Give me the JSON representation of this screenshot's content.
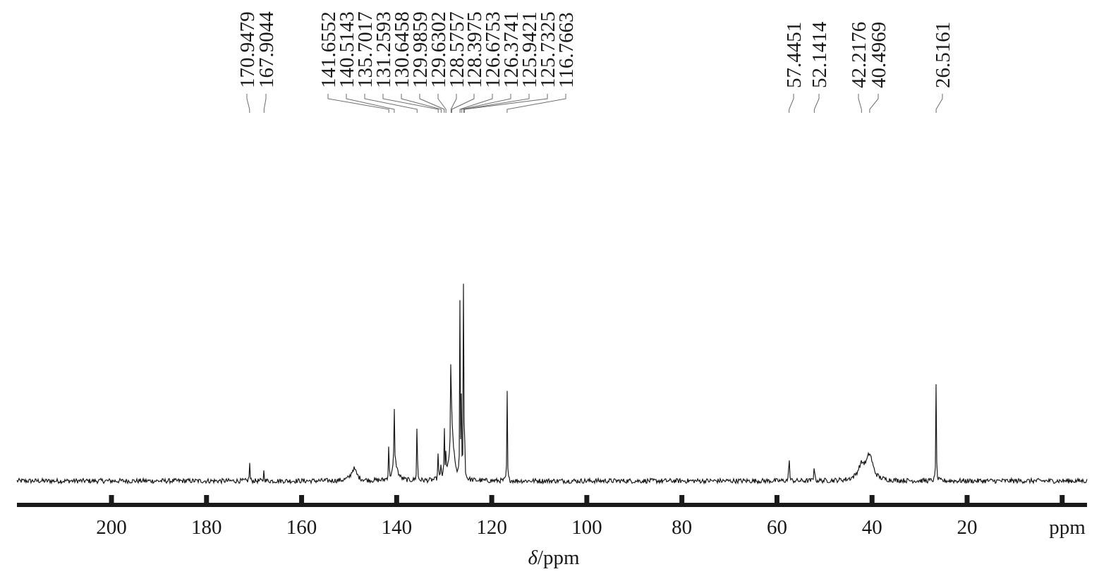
{
  "chart_data": {
    "type": "line",
    "title": "",
    "xlabel_symbol": "δ",
    "xlabel_rest": "/ppm",
    "axis_unit": "ppm",
    "xlim": [
      220,
      4
    ],
    "x_ticks": [
      200,
      180,
      160,
      140,
      120,
      100,
      80,
      60,
      40,
      20,
      0
    ],
    "tick_labels": [
      "200",
      "180",
      "160",
      "140",
      "120",
      "100",
      "80",
      "60",
      "40",
      "20"
    ],
    "y_scale": "relative intensity (0 = baseline, 1 = tallest peak)",
    "peak_labels": [
      {
        "ppm": 170.9479,
        "text": "170.9479"
      },
      {
        "ppm": 167.9044,
        "text": "167.9044"
      },
      {
        "ppm": 141.6552,
        "text": "141.6552"
      },
      {
        "ppm": 140.5143,
        "text": "140.5143"
      },
      {
        "ppm": 135.7017,
        "text": "135.7017"
      },
      {
        "ppm": 131.2593,
        "text": "131.2593"
      },
      {
        "ppm": 130.6458,
        "text": "130.6458"
      },
      {
        "ppm": 129.9859,
        "text": "129.9859"
      },
      {
        "ppm": 129.6302,
        "text": "129.6302"
      },
      {
        "ppm": 128.5757,
        "text": "128.5757"
      },
      {
        "ppm": 128.3975,
        "text": "128.3975"
      },
      {
        "ppm": 126.6753,
        "text": "126.6753"
      },
      {
        "ppm": 126.3741,
        "text": "126.3741"
      },
      {
        "ppm": 125.9421,
        "text": "125.9421"
      },
      {
        "ppm": 125.7325,
        "text": "125.7325"
      },
      {
        "ppm": 116.7663,
        "text": "116.7663"
      },
      {
        "ppm": 57.4451,
        "text": "57.4451"
      },
      {
        "ppm": 52.1414,
        "text": "52.1414"
      },
      {
        "ppm": 42.2176,
        "text": "42.2176"
      },
      {
        "ppm": 40.4969,
        "text": "40.4969"
      },
      {
        "ppm": 26.5161,
        "text": "26.5161"
      }
    ],
    "peaks": [
      {
        "ppm": 170.9479,
        "height": 0.11,
        "width": 0.06
      },
      {
        "ppm": 167.9044,
        "height": 0.07,
        "width": 0.06
      },
      {
        "ppm": 149.0,
        "height": 0.06,
        "width": 0.7
      },
      {
        "ppm": 141.6552,
        "height": 0.19,
        "width": 0.06
      },
      {
        "ppm": 140.5143,
        "height": 0.29,
        "width": 0.08
      },
      {
        "ppm": 140.3,
        "height": 0.08,
        "width": 0.6
      },
      {
        "ppm": 135.7017,
        "height": 0.39,
        "width": 0.06
      },
      {
        "ppm": 131.2593,
        "height": 0.18,
        "width": 0.06
      },
      {
        "ppm": 130.6458,
        "height": 0.11,
        "width": 0.06
      },
      {
        "ppm": 129.9859,
        "height": 0.27,
        "width": 0.06
      },
      {
        "ppm": 129.6302,
        "height": 0.14,
        "width": 0.06
      },
      {
        "ppm": 128.5757,
        "height": 0.58,
        "width": 0.06
      },
      {
        "ppm": 128.3975,
        "height": 0.25,
        "width": 0.5
      },
      {
        "ppm": 126.6753,
        "height": 0.98,
        "width": 0.05
      },
      {
        "ppm": 126.3741,
        "height": 0.42,
        "width": 0.06
      },
      {
        "ppm": 125.9421,
        "height": 0.96,
        "width": 0.05
      },
      {
        "ppm": 125.7325,
        "height": 0.38,
        "width": 0.06
      },
      {
        "ppm": 116.7663,
        "height": 0.46,
        "width": 0.06
      },
      {
        "ppm": 57.4451,
        "height": 0.19,
        "width": 0.06
      },
      {
        "ppm": 52.1414,
        "height": 0.14,
        "width": 0.06
      },
      {
        "ppm": 42.2176,
        "height": 0.07,
        "width": 0.9
      },
      {
        "ppm": 40.4969,
        "height": 0.12,
        "width": 0.8
      },
      {
        "ppm": 26.5161,
        "height": 0.51,
        "width": 0.06
      }
    ],
    "noise_level": 0.012,
    "line_color": "#1a1a1a"
  }
}
